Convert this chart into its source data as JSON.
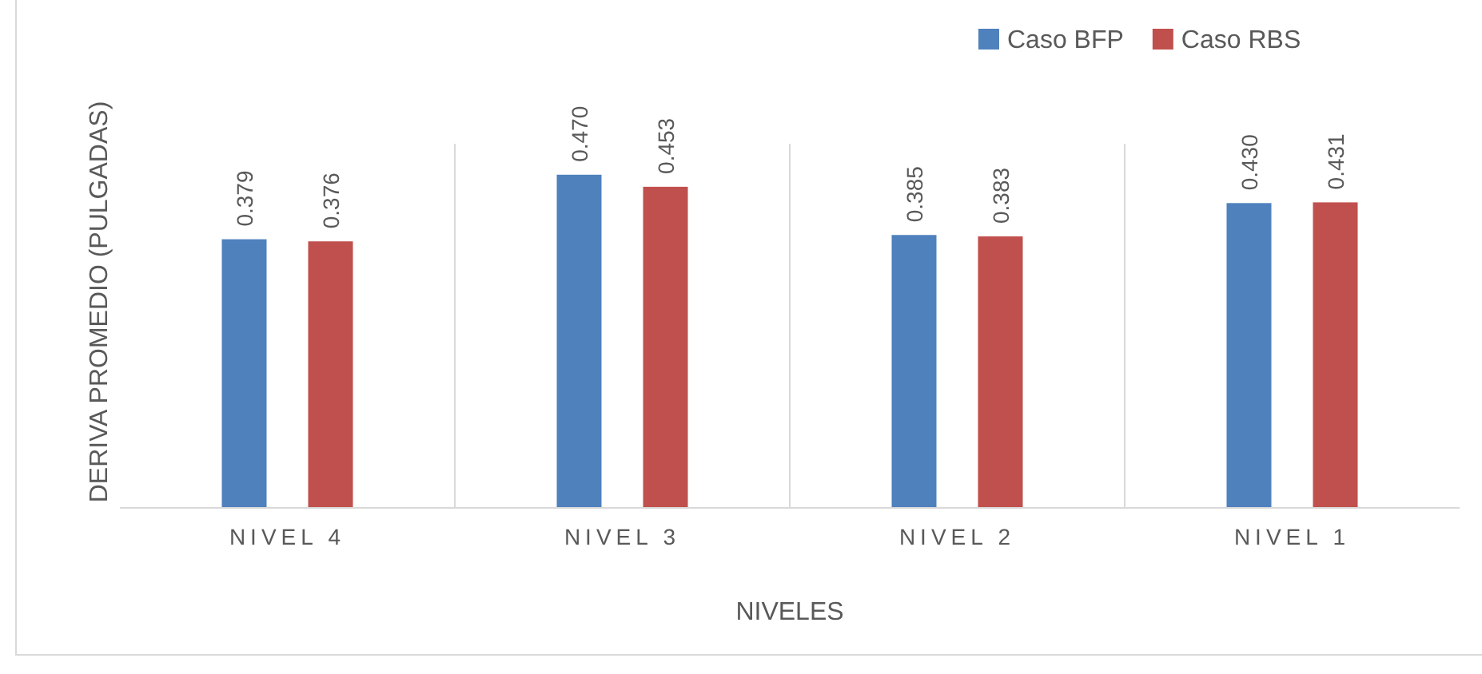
{
  "chart_data": {
    "type": "bar",
    "xlabel": "NIVELES",
    "ylabel": "DERIVA PROMEDIO (PULGADAS)",
    "categories": [
      "NIVEL 4",
      "NIVEL 3",
      "NIVEL 2",
      "NIVEL 1"
    ],
    "series": [
      {
        "name": "Caso BFP",
        "color": "#4f81bd",
        "values": [
          0.379,
          0.47,
          0.385,
          0.43
        ],
        "value_labels": [
          "0.379",
          "0.470",
          "0.385",
          "0.430"
        ]
      },
      {
        "name": "Caso RBS",
        "color": "#c0504d",
        "values": [
          0.376,
          0.453,
          0.383,
          0.431
        ],
        "value_labels": [
          "0.376",
          "0.453",
          "0.383",
          "0.431"
        ]
      }
    ],
    "grid": "x",
    "legend": "top right"
  }
}
